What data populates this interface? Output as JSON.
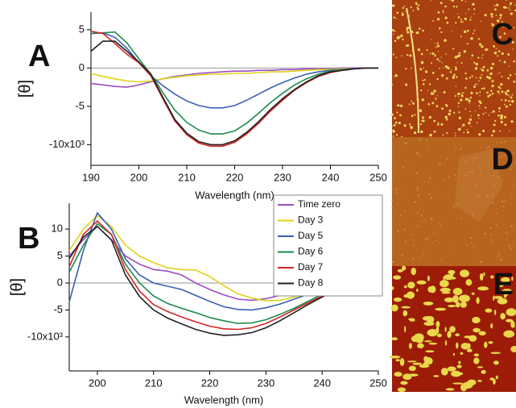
{
  "chart_data": [
    {
      "type": "line",
      "panel_label": "A",
      "xlabel": "Wavelength (nm)",
      "ylabel": "[θ]",
      "x": [
        190,
        192.5,
        195,
        197.5,
        200,
        202.5,
        205,
        207.5,
        210,
        212.5,
        215,
        217.5,
        220,
        222.5,
        225,
        227.5,
        230,
        232.5,
        235,
        237.5,
        240,
        242.5,
        245,
        247.5,
        250
      ],
      "xlim": [
        190,
        250
      ],
      "xticks": [
        190,
        200,
        210,
        220,
        230,
        240,
        250
      ],
      "ylim": [
        -12.7,
        7.3
      ],
      "yticks": [
        5,
        0,
        -5,
        {
          "value": -10,
          "label": "-10x10³"
        }
      ],
      "zero_line": true,
      "series": [
        {
          "color": "#9b4fc4",
          "values": [
            -2,
            -2.2,
            -2.4,
            -2.5,
            -2.2,
            -1.8,
            -1.4,
            -1.1,
            -0.9,
            -0.7,
            -0.6,
            -0.5,
            -0.4,
            -0.4,
            -0.3,
            -0.3,
            -0.2,
            -0.2,
            -0.1,
            -0.1,
            -0.1,
            0,
            0,
            0,
            0
          ]
        },
        {
          "color": "#e0d21a",
          "values": [
            -0.7,
            -1.1,
            -1.4,
            -1.7,
            -1.8,
            -1.7,
            -1.4,
            -1.2,
            -1.0,
            -0.9,
            -0.8,
            -0.8,
            -0.7,
            -0.7,
            -0.6,
            -0.5,
            -0.5,
            -0.4,
            -0.3,
            -0.2,
            -0.2,
            -0.1,
            -0.1,
            0,
            0
          ]
        },
        {
          "color": "#3b5fb3",
          "values": [
            4.5,
            4.6,
            4,
            2.6,
            0.7,
            -1,
            -2.3,
            -3.4,
            -4.3,
            -4.9,
            -5.2,
            -5.2,
            -4.9,
            -4.2,
            -3.4,
            -2.6,
            -1.9,
            -1.3,
            -0.8,
            -0.5,
            -0.3,
            -0.2,
            -0.1,
            0,
            0
          ]
        },
        {
          "color": "#1e8a4e",
          "values": [
            4.5,
            4.6,
            4.7,
            3.3,
            1.2,
            -0.8,
            -3.2,
            -5.5,
            -7.1,
            -8.1,
            -8.6,
            -8.6,
            -8.2,
            -7.2,
            -5.9,
            -4.5,
            -3.3,
            -2.2,
            -1.4,
            -0.8,
            -0.4,
            -0.2,
            -0.1,
            0,
            0
          ]
        },
        {
          "color": "#d42424",
          "values": [
            4.8,
            4.5,
            3.2,
            1.8,
            0.7,
            -1,
            -4,
            -6.9,
            -8.7,
            -9.8,
            -10.2,
            -10.2,
            -9.7,
            -8.6,
            -7.2,
            -5.6,
            -4.2,
            -2.9,
            -1.9,
            -1.1,
            -0.6,
            -0.3,
            -0.1,
            0,
            0
          ]
        },
        {
          "color": "#222222",
          "values": [
            2.2,
            3.5,
            3.5,
            2.2,
            0.8,
            -0.8,
            -3.8,
            -6.7,
            -8.5,
            -9.6,
            -10,
            -10,
            -9.5,
            -8.4,
            -7,
            -5.4,
            -4,
            -2.8,
            -1.8,
            -1,
            -0.5,
            -0.3,
            -0.1,
            0,
            0
          ]
        }
      ]
    },
    {
      "type": "line",
      "panel_label": "B",
      "xlabel": "Wavelength (nm)",
      "ylabel": "[θ]",
      "x": [
        195,
        197.5,
        200,
        202.5,
        205,
        207.5,
        210,
        212.5,
        215,
        217.5,
        220,
        222.5,
        225,
        227.5,
        230,
        232.5,
        235,
        237.5,
        240,
        242.5,
        245,
        247.5,
        250
      ],
      "xlim": [
        195,
        250
      ],
      "xticks": [
        200,
        210,
        220,
        230,
        240,
        250
      ],
      "ylim": [
        -16.3,
        14.8
      ],
      "yticks": [
        10,
        5,
        0,
        -5,
        {
          "value": -10,
          "label": "-10x10³"
        }
      ],
      "zero_line": true,
      "legend": "upper right",
      "series": [
        {
          "name": "Time zero",
          "color": "#9b4fc4",
          "values": [
            5,
            8,
            10.5,
            8,
            5,
            3.5,
            2.5,
            2.2,
            1.5,
            0,
            -1.2,
            -2.2,
            -3,
            -3.2,
            -2.9,
            -2.3,
            -1.7,
            -1.1,
            -0.6,
            -0.3,
            -0.1,
            0,
            0
          ]
        },
        {
          "name": "Day  3",
          "color": "#e0d21a",
          "values": [
            6,
            10,
            12.5,
            10.5,
            7,
            5,
            3.8,
            2.8,
            2.5,
            2.4,
            1.2,
            -0.5,
            -2,
            -2.8,
            -3.3,
            -3.2,
            -2.6,
            -1.9,
            -1.2,
            -0.6,
            -0.2,
            0,
            0
          ]
        },
        {
          "name": "Day 5",
          "color": "#3b5fb3",
          "values": [
            -3.5,
            6,
            13,
            10,
            4.5,
            1.5,
            0,
            -0.6,
            -1.2,
            -2.3,
            -3.4,
            -4.4,
            -4.9,
            -5,
            -4.6,
            -3.9,
            -3,
            -2.1,
            -1.3,
            -0.6,
            -0.2,
            0,
            0
          ]
        },
        {
          "name": "Day 6",
          "color": "#1e8a4e",
          "values": [
            2,
            7,
            11,
            9,
            3.5,
            0,
            -2.4,
            -3.8,
            -4.7,
            -5.5,
            -6.4,
            -7,
            -7.5,
            -7.4,
            -6.8,
            -5.8,
            -4.7,
            -3.4,
            -2.1,
            -1.1,
            -0.4,
            -0.1,
            0
          ]
        },
        {
          "name": "Day 7",
          "color": "#d42424",
          "values": [
            3,
            9,
            11.5,
            9,
            2.5,
            -1.5,
            -4,
            -5.3,
            -6.3,
            -7.2,
            -8,
            -8.5,
            -8.6,
            -8.3,
            -7.5,
            -6.3,
            -5,
            -3.7,
            -2.4,
            -1.3,
            -0.5,
            -0.1,
            0
          ]
        },
        {
          "name": "Day 8",
          "color": "#222222",
          "values": [
            4.5,
            8.5,
            10.5,
            8,
            1.5,
            -2.5,
            -5,
            -6.5,
            -7.6,
            -8.6,
            -9.3,
            -9.7,
            -9.6,
            -9.2,
            -8.3,
            -7,
            -5.5,
            -4,
            -2.6,
            -1.4,
            -0.6,
            -0.2,
            0
          ]
        }
      ]
    }
  ],
  "images": [
    {
      "label": "C"
    },
    {
      "label": "D"
    },
    {
      "label": "E"
    }
  ]
}
